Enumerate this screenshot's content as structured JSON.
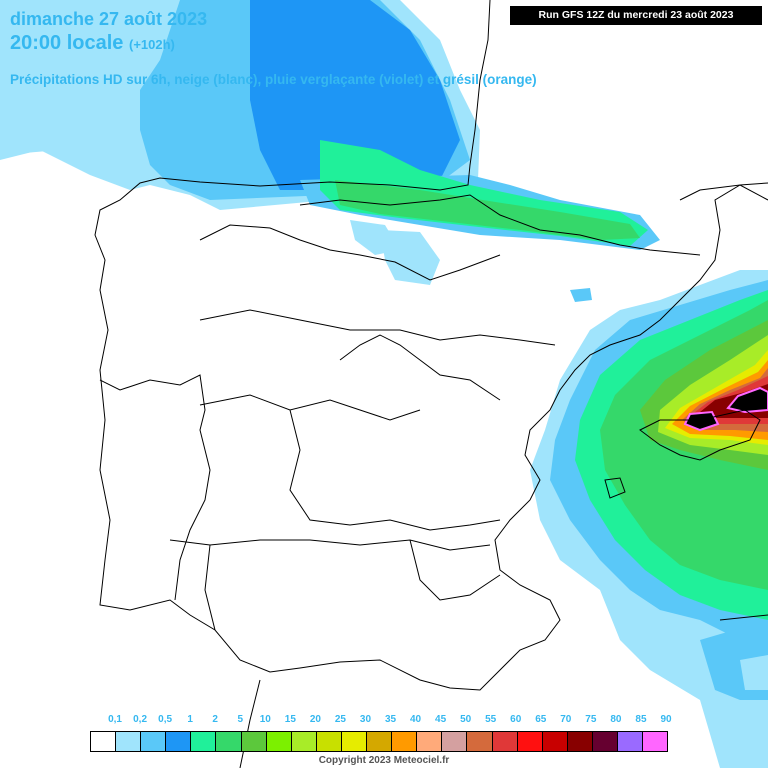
{
  "header": {
    "date": "dimanche 27 août 2023",
    "time": "20:00 locale",
    "forecast_hour": "(+102h)",
    "description": "Précipitations HD sur 6h, neige (blanc), pluie verglaçante (violet) et grésil (orange)",
    "run": "Run GFS 12Z du mercredi 23 août 2023"
  },
  "legend": {
    "labels": [
      "0,1",
      "0,2",
      "0,5",
      "1",
      "2",
      "5",
      "10",
      "15",
      "20",
      "25",
      "30",
      "35",
      "40",
      "45",
      "50",
      "55",
      "60",
      "65",
      "70",
      "75",
      "80",
      "85",
      "90"
    ],
    "colors": [
      "#ffffff",
      "#a0e4fc",
      "#5ac8f8",
      "#1e96f5",
      "#20f09a",
      "#35d86a",
      "#5cc83c",
      "#7cf000",
      "#a8ec28",
      "#c8e000",
      "#e6ec00",
      "#d4a800",
      "#ff9a00",
      "#ffaa7a",
      "#d4a0a0",
      "#d46a3c",
      "#e03838",
      "#ff1010",
      "#c80000",
      "#880000",
      "#660030",
      "#9a6aff",
      "#ff66ff"
    ]
  },
  "copyright": "Copyright 2023 Meteociel.fr"
}
